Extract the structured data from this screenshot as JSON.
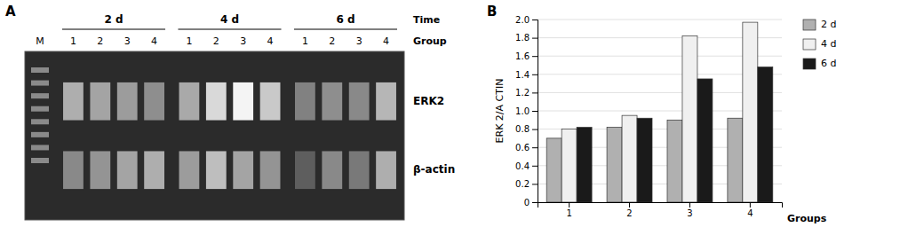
{
  "chart_data": [
    {
      "type": "heatmap",
      "title": "A",
      "xlabel": "Group",
      "group_title": "Time",
      "marker_label": "M",
      "groups": [
        {
          "name": "2 d",
          "categories": [
            "1",
            "2",
            "3",
            "4"
          ]
        },
        {
          "name": "4 d",
          "categories": [
            "1",
            "2",
            "3",
            "4"
          ]
        },
        {
          "name": "6 d",
          "categories": [
            "1",
            "2",
            "3",
            "4"
          ]
        }
      ],
      "series": [
        {
          "name": "ERK2",
          "values": [
            0.62,
            0.58,
            0.55,
            0.5,
            0.6,
            0.78,
            0.88,
            0.72,
            0.45,
            0.5,
            0.48,
            0.65
          ]
        },
        {
          "name": "β-actin",
          "values": [
            0.48,
            0.52,
            0.58,
            0.62,
            0.55,
            0.68,
            0.58,
            0.52,
            0.32,
            0.48,
            0.42,
            0.62
          ]
        }
      ]
    },
    {
      "type": "bar",
      "title": "B",
      "xlabel": "Groups",
      "ylabel": "ERK 2/A CTIN",
      "categories": [
        "1",
        "2",
        "3",
        "4"
      ],
      "series": [
        {
          "name": "2 d",
          "color": "#b0b0b0",
          "values": [
            0.7,
            0.82,
            0.9,
            0.92
          ]
        },
        {
          "name": "4 d",
          "color": "#f0f0f0",
          "values": [
            0.8,
            0.95,
            1.82,
            1.97
          ]
        },
        {
          "name": "6 d",
          "color": "#1a1a1a",
          "values": [
            0.82,
            0.92,
            1.35,
            1.48
          ]
        }
      ],
      "ylim": [
        0,
        2.0
      ],
      "yticks": [
        0,
        0.2,
        0.4,
        0.6,
        0.8,
        {
          "value": 1.0,
          "label": "1.0"
        },
        1.2,
        1.4,
        1.6,
        1.8,
        {
          "value": 2.0,
          "label": "2.0"
        }
      ],
      "grid": true,
      "legend": "right"
    }
  ]
}
